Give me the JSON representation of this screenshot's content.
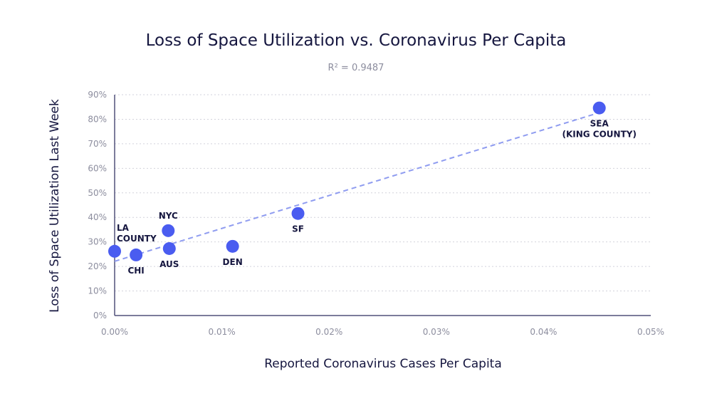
{
  "chart_data": {
    "type": "scatter",
    "title": "Loss of Space Utilization vs. Coronavirus Per Capita",
    "subtitle": "R² = 0.9487",
    "xlabel": "Reported Coronavirus Cases Per Capita",
    "ylabel": "Loss of Space Utilization Last Week",
    "xlim": [
      0,
      0.05
    ],
    "ylim": [
      0,
      90
    ],
    "x_ticks": [
      "0.00%",
      "0.01%",
      "0.02%",
      "0.03%",
      "0.04%",
      "0.05%"
    ],
    "y_ticks": [
      "0%",
      "10%",
      "20%",
      "30%",
      "40%",
      "50%",
      "60%",
      "70%",
      "80%",
      "90%"
    ],
    "grid": "horizontal-dotted",
    "point_color": "#4a5cf0",
    "trendline_color": "#8f9cf0",
    "trendline": {
      "type": "linear",
      "x": [
        0,
        0.0449
      ],
      "y": [
        22.1,
        82.3
      ]
    },
    "points": [
      {
        "label": "LA COUNTY",
        "label_lines": [
          "LA",
          "COUNTY"
        ],
        "x": 0.0,
        "y": 26.2,
        "label_pos": "above-right"
      },
      {
        "label": "CHI",
        "label_lines": [
          "CHI"
        ],
        "x": 0.002,
        "y": 24.7,
        "label_pos": "below"
      },
      {
        "label": "NYC",
        "label_lines": [
          "NYC"
        ],
        "x": 0.005,
        "y": 34.6,
        "label_pos": "above"
      },
      {
        "label": "AUS",
        "label_lines": [
          "AUS"
        ],
        "x": 0.0051,
        "y": 27.3,
        "label_pos": "below"
      },
      {
        "label": "DEN",
        "label_lines": [
          "DEN"
        ],
        "x": 0.011,
        "y": 28.2,
        "label_pos": "below"
      },
      {
        "label": "SF",
        "label_lines": [
          "SF"
        ],
        "x": 0.0171,
        "y": 41.6,
        "label_pos": "below"
      },
      {
        "label": "SEA (KING COUNTY)",
        "label_lines": [
          "SEA",
          "(KING COUNTY)"
        ],
        "x": 0.0452,
        "y": 84.6,
        "label_pos": "below"
      }
    ]
  }
}
